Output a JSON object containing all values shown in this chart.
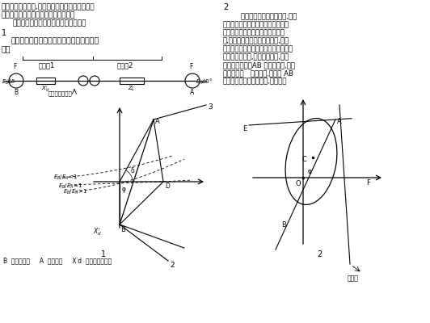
{
  "bg_color": "#ffffff",
  "left_text": {
    "line1": "厂站侧的厂用系统,危及机组安全运行。对大型机",
    "line2": "组应该配置功能比较齐全的失步保护。",
    "line3": "这里介绍一种三阻抗元件的失步保护。"
  },
  "right_text_lines": [
    "        根据图１的阻抗运行轨迹,可以",
    "抗元件和两根直线型阻抗元件构成三",
    "发电机的失步。阻抗元件图如图２",
    "件,把阻抗平面分为两个动作区,即动",
    "区１、动作区２。当振荡中心落于区１",
    "位于发变组内部,当落于区２时,振荡",
    "变以外的系统。AB 为阻挡元件,把阻",
    "右两部分。   为阻抗角,失步线 AB",
    "点０代表失步保护安装处,即机端。"
  ],
  "bottom_label": "B  代表发电机     A  代表系统     X′d  代表发电机阻抗"
}
